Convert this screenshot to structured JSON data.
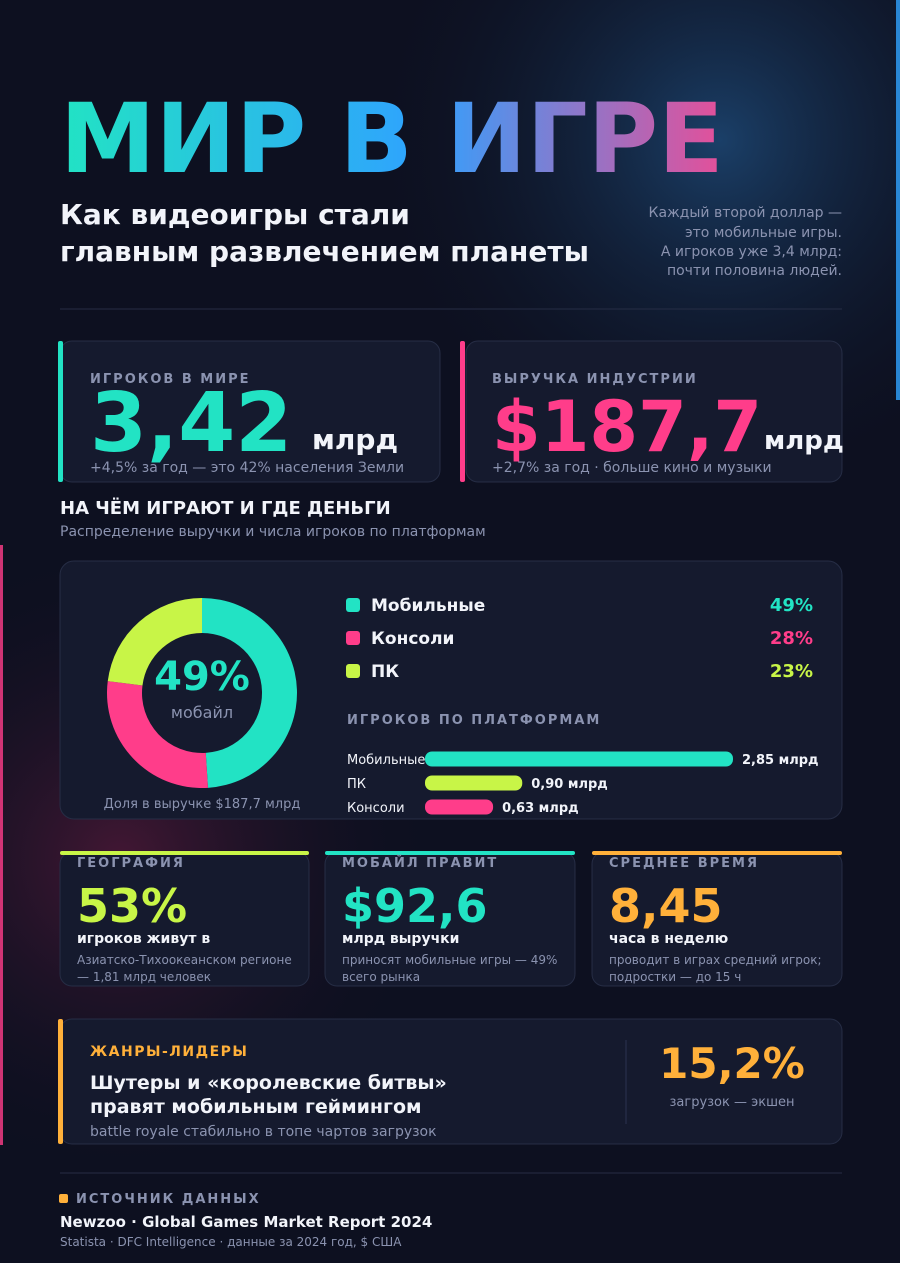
{
  "header": {
    "title": "МИР В ИГРЕ",
    "subtitle_lines": [
      "Как видеоигры стали",
      "главным развлечением планеты"
    ],
    "aside_lines": [
      "Каждый второй доллар —",
      "это мобильные игры.",
      "А игроков уже 3,4 млрд:",
      "почти половина людей."
    ]
  },
  "kpis": [
    {
      "label": "ИГРОКОВ В МИРЕ",
      "value": "3,42",
      "unit": "млрд",
      "note": "+4,5% за год — это 42% населения Земли"
    },
    {
      "label": "ВЫРУЧКА ИНДУСТРИИ",
      "value": "$187,7",
      "unit": "млрд",
      "note": "+2,7% за год · больше кино и музыки"
    }
  ],
  "section": {
    "title": "НА ЧЁМ ИГРАЮТ И ГДЕ ДЕНЬГИ",
    "subtitle": "Распределение выручки и числа игроков по платформам"
  },
  "revenue_share": {
    "type": "pie",
    "center_value": "49%",
    "center_label": "мобайл",
    "caption": "Доля в выручке $187,7 млрд",
    "categories": [
      "Мобильные",
      "Консоли",
      "ПК"
    ],
    "colors": [
      "#22e3c4",
      "#ff3d8a",
      "#c8f547"
    ],
    "values": [
      49,
      28,
      23
    ],
    "value_labels": [
      "49%",
      "28%",
      "23%"
    ]
  },
  "players": {
    "type": "bar",
    "title": "ИГРОКОВ ПО ПЛАТФОРМАМ",
    "categories": [
      "Мобильные",
      "ПК",
      "Консоли"
    ],
    "colors": [
      "#22e3c4",
      "#c8f547",
      "#ff3d8a"
    ],
    "values": [
      2.85,
      0.9,
      0.63
    ],
    "value_labels": [
      "2,85 млрд",
      "0,90 млрд",
      "0,63 млрд"
    ]
  },
  "facts": [
    {
      "label": "ГЕОГРАФИЯ",
      "value": "53%",
      "headline": "игроков живут в",
      "note_lines": [
        "Азиатско-Тихоокеанском регионе",
        "— 1,81 млрд человек"
      ]
    },
    {
      "label": "МОБАЙЛ ПРАВИТ",
      "value": "$92,6",
      "headline": "млрд выручки",
      "note_lines": [
        "приносят мобильные игры — 49%",
        "всего рынка"
      ]
    },
    {
      "label": "СРЕДНЕЕ ВРЕМЯ",
      "value": "8,45",
      "headline": "часа в неделю",
      "note_lines": [
        "проводит в играх средний игрок;",
        "подростки — до 15 ч"
      ]
    }
  ],
  "genres": {
    "label": "ЖАНРЫ-ЛИДЕРЫ",
    "title_lines": [
      "Шутеры и «королевские битвы»",
      "правят мобильным геймингом"
    ],
    "note": "battle royale стабильно в топе чартов загрузок",
    "stat": "15,2%",
    "stat_label": "загрузок — экшен"
  },
  "footer": {
    "label": "ИСТОЧНИК ДАННЫХ",
    "source": "Newzoo · Global Games Market Report 2024",
    "note": "Statista · DFC Intelligence · данные за 2024 год, $ США"
  }
}
